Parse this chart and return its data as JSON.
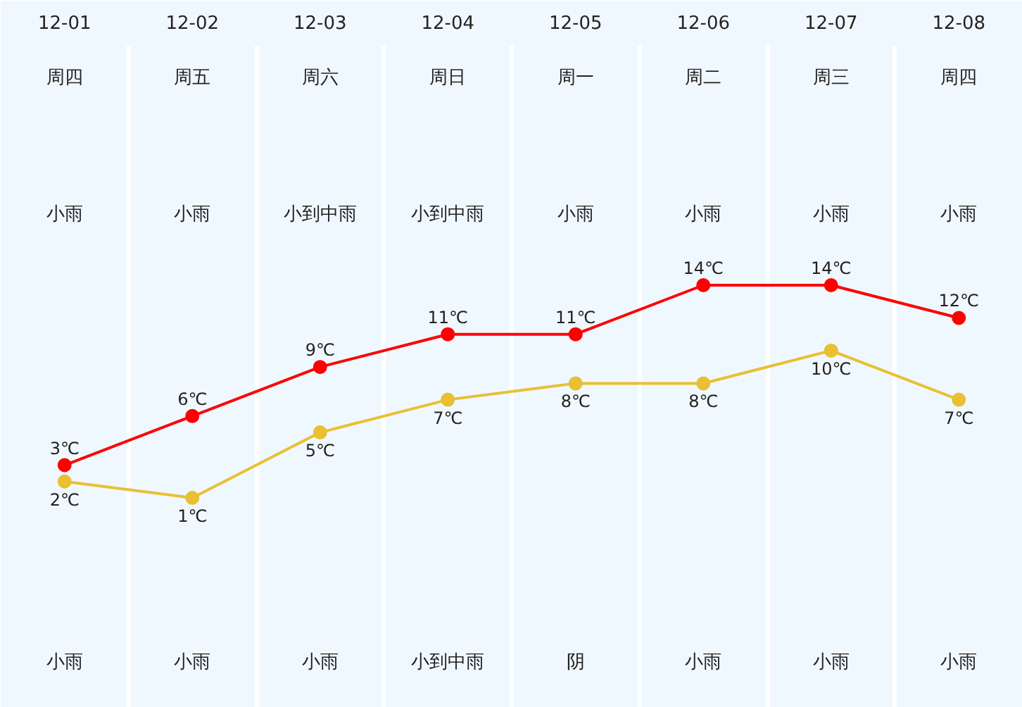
{
  "chart_data": {
    "type": "line",
    "categories": [
      "12-01",
      "12-02",
      "12-03",
      "12-04",
      "12-05",
      "12-06",
      "12-07",
      "12-08"
    ],
    "series": [
      {
        "color": "#ff0000",
        "values": [
          3,
          6,
          9,
          11,
          11,
          14,
          14,
          12
        ],
        "value_labels": [
          "3℃",
          "6℃",
          "9℃",
          "11℃",
          "11℃",
          "14℃",
          "14℃",
          "12℃"
        ]
      },
      {
        "color": "#e8c032",
        "values": [
          2,
          1,
          5,
          7,
          8,
          8,
          10,
          7
        ],
        "value_labels": [
          "2℃",
          "1℃",
          "5℃",
          "7℃",
          "8℃",
          "8℃",
          "10℃",
          "7℃"
        ]
      }
    ],
    "marker": "circle",
    "line_style": "solid",
    "grid": "x",
    "tick_labels": "x",
    "annotations": [
      "周四",
      "周五",
      "周六",
      "周日",
      "周一",
      "周二",
      "周三",
      "周四",
      "小雨",
      "小雨",
      "小到中雨",
      "小到中雨",
      "小雨",
      "小雨",
      "小雨",
      "小雨",
      "小雨",
      "小雨",
      "小雨",
      "小到中雨",
      "阴",
      "小雨",
      "小雨",
      "小雨"
    ]
  }
}
